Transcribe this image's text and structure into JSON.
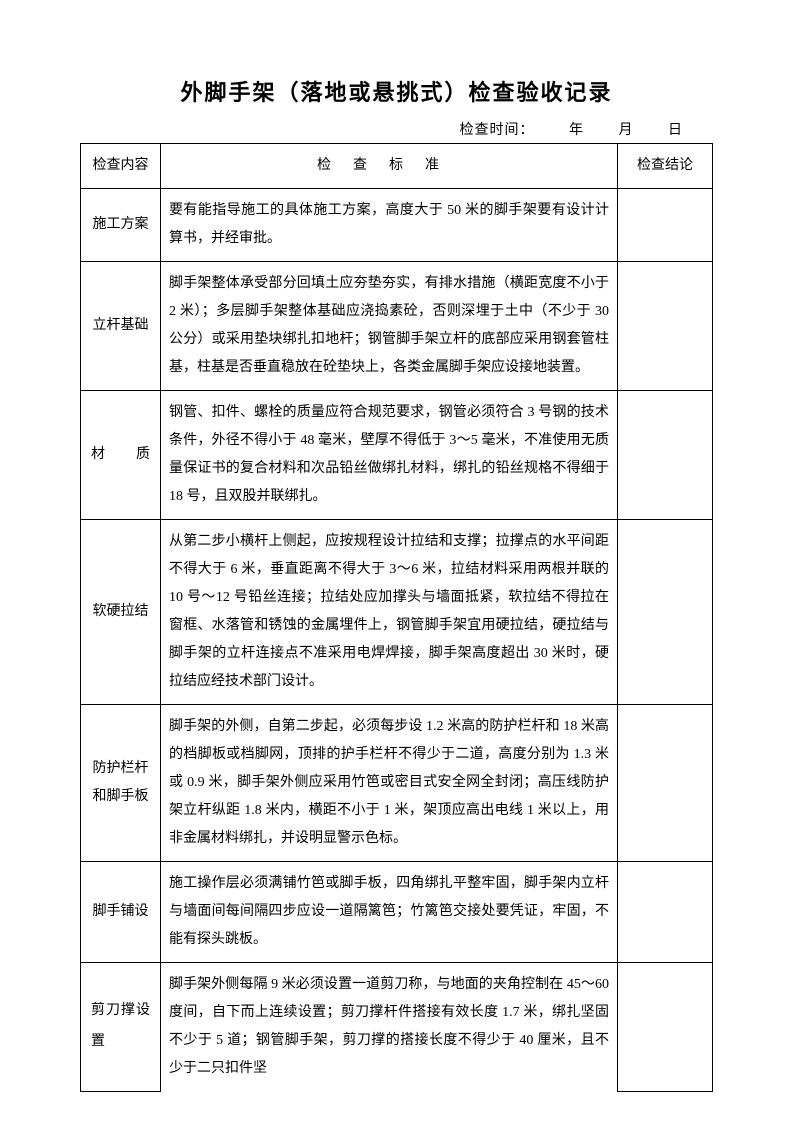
{
  "title": "外脚手架（落地或悬挑式）检查验收记录",
  "date_label": "检查时间：",
  "date_year": "年",
  "date_month": "月",
  "date_day": "日",
  "header": {
    "col1": "检查内容",
    "col2": "检查标准",
    "col3": "检查结论"
  },
  "rows": [
    {
      "item": "施工方案",
      "standard": "要有能指导施工的具体施工方案，高度大于 50 米的脚手架要有设计计算书，并经审批。"
    },
    {
      "item": "立杆基础",
      "standard": "脚手架整体承受部分回填土应夯垫夯实，有排水措施（横距宽度不小于 2 米）；多层脚手架整体基础应浇捣素砼，否则深埋于土中（不少于 30 公分）或采用垫块绑扎扣地杆；钢管脚手架立杆的底部应采用钢套管柱基，柱基是否垂直稳放在砼垫块上，各类金属脚手架应设接地装置。"
    },
    {
      "item": "材质",
      "standard": "钢管、扣件、螺栓的质量应符合规范要求，钢管必须符合 3 号钢的技术条件，外径不得小于 48 毫米，壁厚不得低于 3～5 毫米，不准使用无质量保证书的复合材料和次品铅丝做绑扎材料，绑扎的铅丝规格不得细于 18 号，且双股并联绑扎。"
    },
    {
      "item": "软硬拉结",
      "standard": "从第二步小横杆上侧起，应按规程设计拉结和支撑；拉撑点的水平间距不得大于 6 米，垂直距离不得大于 3～6 米，拉结材料采用两根并联的 10 号～12 号铅丝连接；拉结处应加撑头与墙面抵紧，软拉结不得拉在窗框、水落管和锈蚀的金属埋件上，钢管脚手架宜用硬拉结，硬拉结与脚手架的立杆连接点不准采用电焊焊接，脚手架高度超出 30 米时，硬拉结应经技术部门设计。"
    },
    {
      "item": "防护栏杆和脚手板",
      "standard": "脚手架的外侧，自第二步起，必须每步设 1.2 米高的防护栏杆和 18 米高的档脚板或档脚网，顶排的护手栏杆不得少于二道，高度分别为 1.3 米或 0.9 米，脚手架外侧应采用竹笆或密目式安全网全封闭；高压线防护架立杆纵距 1.8 米内，横距不小于 1 米，架顶应高出电线 1 米以上，用非金属材料绑扎，并设明显警示色标。"
    },
    {
      "item": "脚手铺设",
      "standard": "施工操作层必须满铺竹笆或脚手板，四角绑扎平整牢固，脚手架内立杆与墙面间每间隔四步应设一道隔篱笆；竹篱笆交接处要凭证，牢固，不能有探头跳板。"
    },
    {
      "item": "剪刀撑设置",
      "standard": "脚手架外侧每隔 9 米必须设置一道剪刀称，与地面的夹角控制在 45～60 度间，自下而上连续设置；剪刀撑杆件搭接有效长度 1.7 米，绑扎坚固不少于 5 道；钢管脚手架，剪刀撑的搭接长度不得少于 40 厘米，且不少于二只扣件坚"
    }
  ]
}
